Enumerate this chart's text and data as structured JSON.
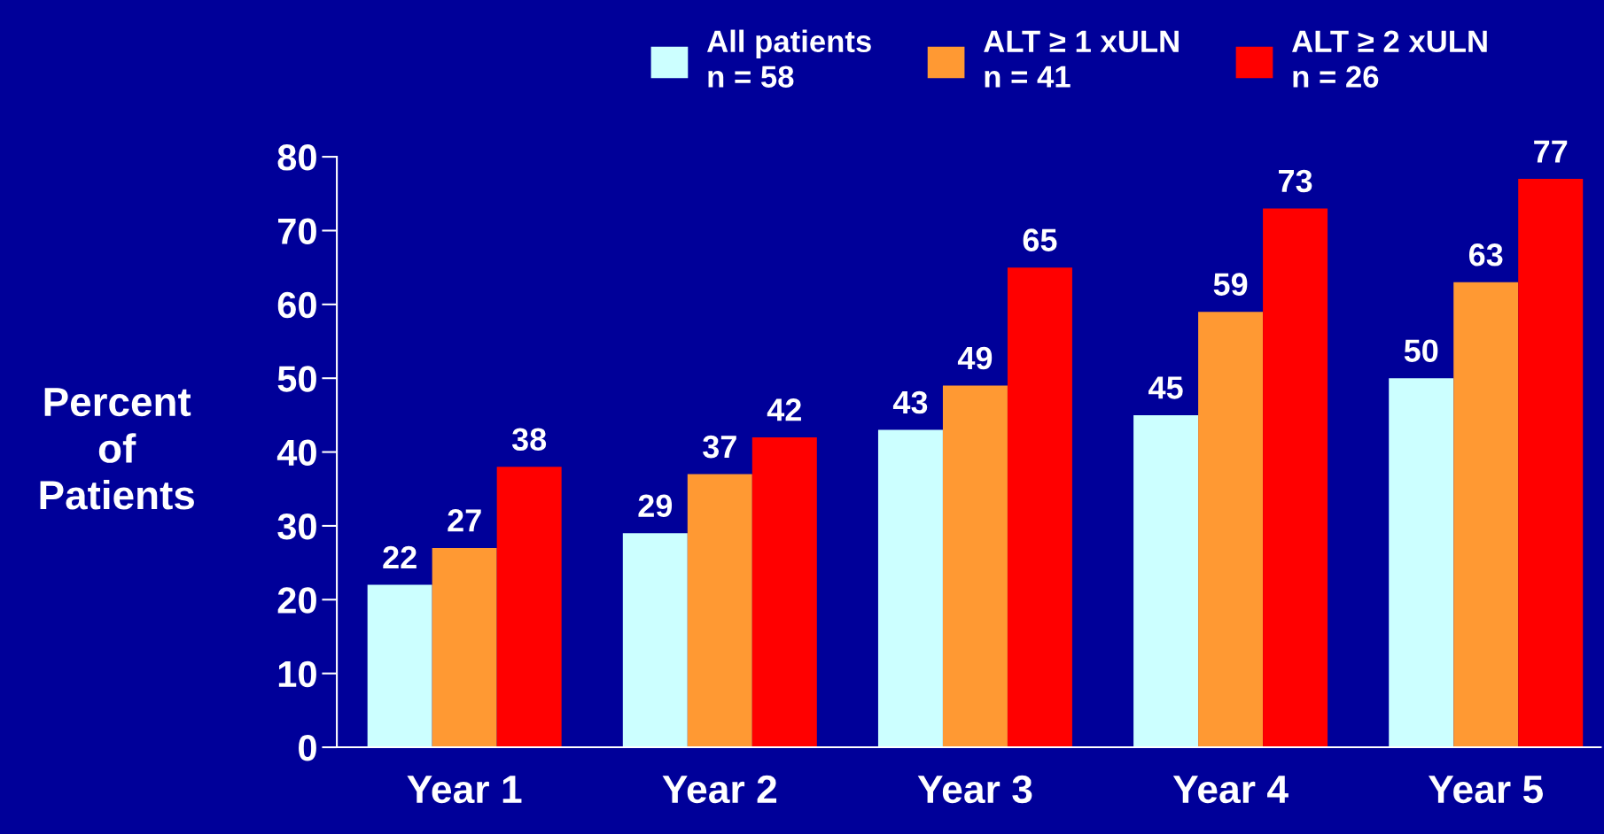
{
  "chart_data": {
    "type": "bar",
    "ylabel": "Percent\nof\nPatients",
    "categories": [
      "Year 1",
      "Year 2",
      "Year 3",
      "Year 4",
      "Year 5"
    ],
    "series": [
      {
        "name": "All patients\nn = 58",
        "color": "#ccffff",
        "values": [
          22,
          29,
          43,
          45,
          50
        ]
      },
      {
        "name": "ALT ≥ 1 xULN\nn = 41",
        "color": "#ff9933",
        "values": [
          27,
          37,
          49,
          59,
          63
        ]
      },
      {
        "name": "ALT ≥ 2 xULN\nn = 26",
        "color": "#ff0000",
        "values": [
          38,
          42,
          65,
          73,
          77
        ]
      }
    ],
    "ylim": [
      0,
      80
    ],
    "yticks": [
      0,
      10,
      20,
      30,
      40,
      50,
      60,
      70,
      80
    ],
    "data_labels": true,
    "legend": "top",
    "grid": false
  }
}
